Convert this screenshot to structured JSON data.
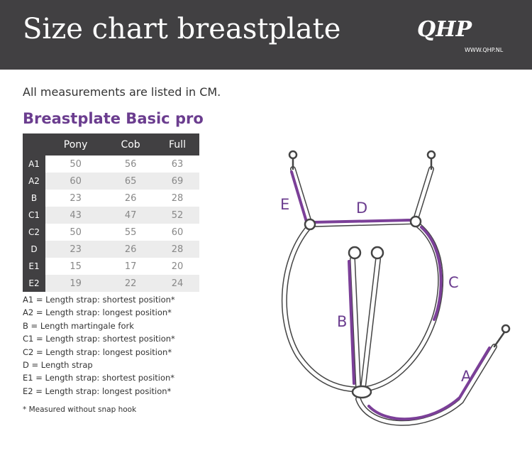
{
  "header": {
    "title": "Size chart breastplate",
    "logo": "QHP",
    "website": "WWW.QHP.NL"
  },
  "note": "All measurements are listed in CM.",
  "product": "Breastplate Basic pro",
  "table": {
    "columns": [
      "Pony",
      "Cob",
      "Full"
    ],
    "rows": [
      [
        "A1",
        50,
        56,
        63
      ],
      [
        "A2",
        60,
        65,
        69
      ],
      [
        "B",
        23,
        26,
        28
      ],
      [
        "C1",
        43,
        47,
        52
      ],
      [
        "C2",
        50,
        55,
        60
      ],
      [
        "D",
        23,
        26,
        28
      ],
      [
        "E1",
        15,
        17,
        20
      ],
      [
        "E2",
        19,
        22,
        24
      ]
    ]
  },
  "legend": [
    "A1 = Length strap: shortest position*",
    "A2 = Length strap: longest position*",
    "B = Length martingale fork",
    "C1 = Length strap: shortest position*",
    "C2 = Length strap: longest position*",
    "D = Length strap",
    "E1 = Length strap: shortest position*",
    "E2 = Length strap: longest position*"
  ],
  "footnote": "* Measured without snap hook",
  "diagram": {
    "labels": [
      "A",
      "B",
      "C",
      "D",
      "E"
    ]
  }
}
